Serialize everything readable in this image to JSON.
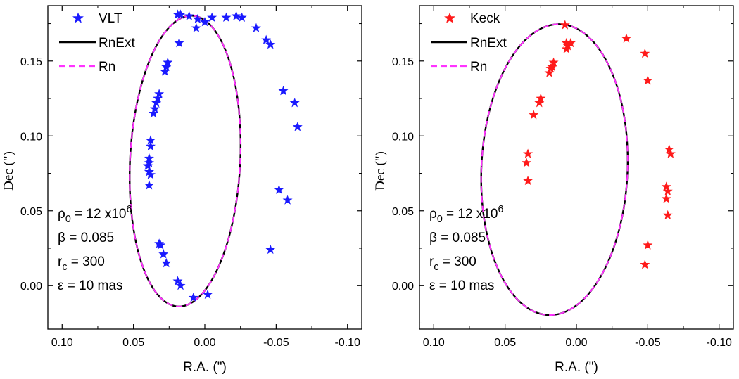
{
  "chart_data": [
    {
      "type": "scatter",
      "xlabel": "R.A. (\")",
      "ylabel": "Dec (\")",
      "xlim": [
        0.11,
        -0.11
      ],
      "ylim": [
        -0.029,
        0.187
      ],
      "xticks": [
        "0.10",
        "0.05",
        "0.00",
        "-0.05",
        "-0.10"
      ],
      "yticks": [
        "0.00",
        "0.05",
        "0.10",
        "0.15"
      ],
      "legend_position": "top-left",
      "legend": {
        "points": "VLT",
        "line1": "RnExt",
        "line2": "Rn"
      },
      "colors": {
        "points": "#1a1aff",
        "line1": "#000000",
        "line2": "#ff33ff"
      },
      "orbit": {
        "center_x": 0.0138,
        "center_y": 0.0832,
        "semi_width": 0.0386,
        "semi_height": 0.0972,
        "rotation_deg": 3
      },
      "points": [
        {
          "x": 0.019,
          "y": 0.181
        },
        {
          "x": 0.017,
          "y": 0.181
        },
        {
          "x": 0.011,
          "y": 0.18
        },
        {
          "x": 0.005,
          "y": 0.178
        },
        {
          "x": 0.0,
          "y": 0.176
        },
        {
          "x": -0.005,
          "y": 0.179
        },
        {
          "x": -0.015,
          "y": 0.179
        },
        {
          "x": -0.022,
          "y": 0.18
        },
        {
          "x": -0.026,
          "y": 0.179
        },
        {
          "x": 0.006,
          "y": 0.172
        },
        {
          "x": -0.036,
          "y": 0.172
        },
        {
          "x": -0.043,
          "y": 0.164
        },
        {
          "x": -0.046,
          "y": 0.161
        },
        {
          "x": 0.018,
          "y": 0.162
        },
        {
          "x": 0.026,
          "y": 0.149
        },
        {
          "x": 0.027,
          "y": 0.146
        },
        {
          "x": 0.028,
          "y": 0.143
        },
        {
          "x": -0.055,
          "y": 0.13
        },
        {
          "x": -0.063,
          "y": 0.122
        },
        {
          "x": 0.032,
          "y": 0.128
        },
        {
          "x": 0.033,
          "y": 0.125
        },
        {
          "x": 0.034,
          "y": 0.122
        },
        {
          "x": 0.035,
          "y": 0.118
        },
        {
          "x": 0.036,
          "y": 0.115
        },
        {
          "x": -0.065,
          "y": 0.106
        },
        {
          "x": 0.038,
          "y": 0.097
        },
        {
          "x": 0.038,
          "y": 0.093
        },
        {
          "x": 0.039,
          "y": 0.085
        },
        {
          "x": 0.039,
          "y": 0.082
        },
        {
          "x": 0.04,
          "y": 0.08
        },
        {
          "x": 0.039,
          "y": 0.076
        },
        {
          "x": 0.038,
          "y": 0.074
        },
        {
          "x": 0.039,
          "y": 0.067
        },
        {
          "x": -0.052,
          "y": 0.064
        },
        {
          "x": -0.058,
          "y": 0.057
        },
        {
          "x": 0.032,
          "y": 0.028
        },
        {
          "x": 0.031,
          "y": 0.027
        },
        {
          "x": -0.046,
          "y": 0.024
        },
        {
          "x": 0.029,
          "y": 0.021
        },
        {
          "x": 0.027,
          "y": 0.015
        },
        {
          "x": 0.019,
          "y": 0.003
        },
        {
          "x": 0.017,
          "y": 0.0
        },
        {
          "x": 0.008,
          "y": -0.008
        },
        {
          "x": -0.002,
          "y": -0.006
        }
      ],
      "annotations": [
        {
          "base": "ρ",
          "sub": "0",
          "rest": " = 12 x10",
          "sup": "6"
        },
        {
          "base": "β = 0.085",
          "sub": "",
          "rest": "",
          "sup": ""
        },
        {
          "base": "r",
          "sub": "c",
          "rest": " = 300",
          "sup": ""
        },
        {
          "base": "ε = 10 mas",
          "sub": "",
          "rest": "",
          "sup": ""
        }
      ]
    },
    {
      "type": "scatter",
      "xlabel": "R.A. (\")",
      "ylabel": "Dec (\")",
      "xlim": [
        0.11,
        -0.11
      ],
      "ylim": [
        -0.029,
        0.187
      ],
      "xticks": [
        "0.10",
        "0.05",
        "0.00",
        "-0.05",
        "-0.10"
      ],
      "yticks": [
        "0.00",
        "0.05",
        "0.10",
        "0.15"
      ],
      "legend_position": "top-left",
      "legend": {
        "points": "Keck",
        "line1": "RnExt",
        "line2": "Rn"
      },
      "colors": {
        "points": "#ff1a1a",
        "line1": "#000000",
        "line2": "#ff33ff"
      },
      "orbit": {
        "center_x": 0.0154,
        "center_y": 0.0775,
        "semi_width": 0.0512,
        "semi_height": 0.0972,
        "rotation_deg": 2.6
      },
      "points": [
        {
          "x": 0.008,
          "y": 0.174
        },
        {
          "x": -0.035,
          "y": 0.165
        },
        {
          "x": -0.048,
          "y": 0.155
        },
        {
          "x": 0.006,
          "y": 0.16
        },
        {
          "x": 0.007,
          "y": 0.162
        },
        {
          "x": 0.004,
          "y": 0.162
        },
        {
          "x": 0.007,
          "y": 0.158
        },
        {
          "x": 0.016,
          "y": 0.149
        },
        {
          "x": 0.017,
          "y": 0.146
        },
        {
          "x": 0.018,
          "y": 0.145
        },
        {
          "x": 0.019,
          "y": 0.142
        },
        {
          "x": -0.05,
          "y": 0.137
        },
        {
          "x": 0.025,
          "y": 0.125
        },
        {
          "x": 0.026,
          "y": 0.122
        },
        {
          "x": 0.03,
          "y": 0.114
        },
        {
          "x": -0.065,
          "y": 0.091
        },
        {
          "x": -0.066,
          "y": 0.088
        },
        {
          "x": 0.034,
          "y": 0.088
        },
        {
          "x": 0.035,
          "y": 0.082
        },
        {
          "x": 0.034,
          "y": 0.07
        },
        {
          "x": -0.063,
          "y": 0.066
        },
        {
          "x": -0.064,
          "y": 0.063
        },
        {
          "x": -0.063,
          "y": 0.058
        },
        {
          "x": -0.064,
          "y": 0.047
        },
        {
          "x": -0.05,
          "y": 0.027
        },
        {
          "x": -0.048,
          "y": 0.014
        }
      ],
      "annotations": [
        {
          "base": "ρ",
          "sub": "0",
          "rest": " = 12 x10",
          "sup": "6"
        },
        {
          "base": "β = 0.085",
          "sub": "",
          "rest": "",
          "sup": ""
        },
        {
          "base": "r",
          "sub": "c",
          "rest": " = 300",
          "sup": ""
        },
        {
          "base": "ε = 10 mas",
          "sub": "",
          "rest": "",
          "sup": ""
        }
      ]
    }
  ]
}
